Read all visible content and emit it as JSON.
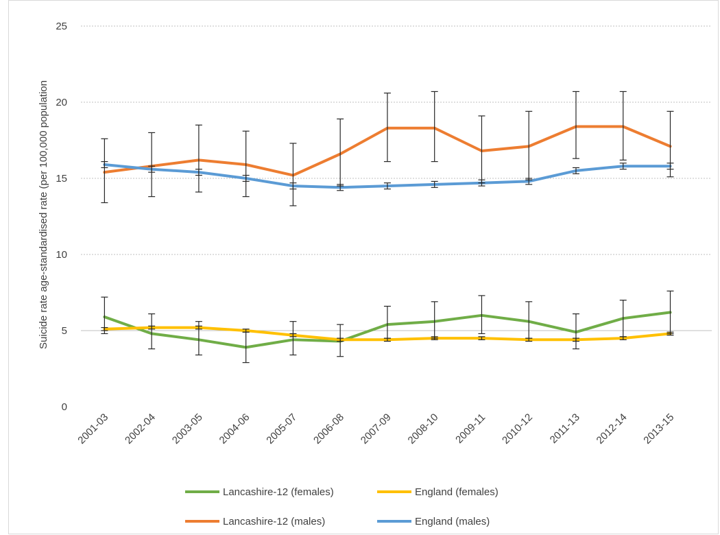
{
  "chart_data": {
    "type": "line",
    "categories": [
      "2001-03",
      "2002-04",
      "2003-05",
      "2004-06",
      "2005-07",
      "2006-08",
      "2007-09",
      "2008-10",
      "2009-11",
      "2010-12",
      "2011-13",
      "2012-14",
      "2013-15"
    ],
    "ylabel": "Suicide rate age-standardised rate (per 100,000 population",
    "xlabel": "",
    "ylim": [
      0,
      25
    ],
    "yticks": [
      0,
      5,
      10,
      15,
      20,
      25
    ],
    "grid": "horizontal dotted",
    "legend_position": "bottom",
    "series": [
      {
        "name": "Lancashire-12 (females)",
        "color": "#70ad47",
        "values": [
          5.9,
          4.8,
          4.4,
          3.9,
          4.4,
          4.3,
          5.4,
          5.6,
          6.0,
          5.6,
          4.9,
          5.8,
          6.2
        ],
        "error_low": [
          4.8,
          3.8,
          3.4,
          2.9,
          3.4,
          3.3,
          4.5,
          4.5,
          4.8,
          4.5,
          3.8,
          4.6,
          4.8
        ],
        "error_high": [
          7.2,
          6.1,
          5.6,
          4.9,
          5.6,
          5.4,
          6.6,
          6.9,
          7.3,
          6.9,
          6.1,
          7.0,
          7.6
        ]
      },
      {
        "name": "England (females)",
        "color": "#ffc000",
        "values": [
          5.1,
          5.2,
          5.2,
          5.0,
          4.7,
          4.4,
          4.4,
          4.5,
          4.5,
          4.4,
          4.4,
          4.5,
          4.8
        ],
        "error_low": [
          5.0,
          5.1,
          5.1,
          4.9,
          4.6,
          4.3,
          4.3,
          4.4,
          4.4,
          4.3,
          4.3,
          4.4,
          4.7
        ],
        "error_high": [
          5.2,
          5.3,
          5.3,
          5.1,
          4.8,
          4.5,
          4.5,
          4.6,
          4.6,
          4.5,
          4.5,
          4.6,
          4.9
        ]
      },
      {
        "name": "Lancashire-12 (males)",
        "color": "#ed7d31",
        "values": [
          15.4,
          15.8,
          16.2,
          15.9,
          15.2,
          16.6,
          18.3,
          18.3,
          16.8,
          17.1,
          18.4,
          18.4,
          17.1
        ],
        "error_low": [
          13.4,
          13.8,
          14.1,
          13.8,
          13.2,
          14.5,
          16.1,
          16.1,
          14.7,
          14.9,
          16.3,
          16.2,
          15.1
        ],
        "error_high": [
          17.6,
          18.0,
          18.5,
          18.1,
          17.3,
          18.9,
          20.6,
          20.7,
          19.1,
          19.4,
          20.7,
          20.7,
          19.4
        ]
      },
      {
        "name": "England (males)",
        "color": "#5b9bd5",
        "values": [
          15.9,
          15.6,
          15.4,
          15.0,
          14.5,
          14.4,
          14.5,
          14.6,
          14.7,
          14.8,
          15.5,
          15.8,
          15.8
        ],
        "error_low": [
          15.7,
          15.4,
          15.2,
          14.8,
          14.3,
          14.2,
          14.3,
          14.4,
          14.5,
          14.6,
          15.3,
          15.6,
          15.6
        ],
        "error_high": [
          16.1,
          15.8,
          15.6,
          15.2,
          14.7,
          14.6,
          14.7,
          14.8,
          14.9,
          15.0,
          15.7,
          16.0,
          16.0
        ]
      }
    ]
  }
}
